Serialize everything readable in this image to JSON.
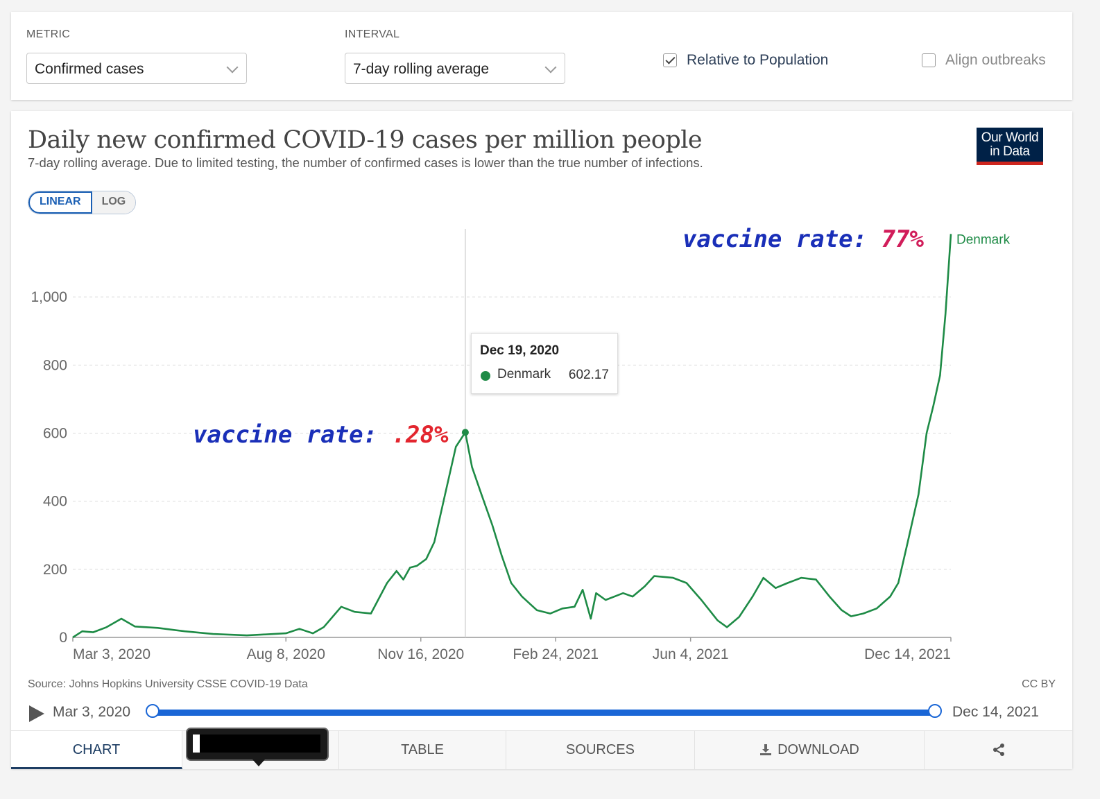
{
  "controls": {
    "metric_label": "METRIC",
    "metric_value": "Confirmed cases",
    "interval_label": "INTERVAL",
    "interval_value": "7-day rolling average",
    "relative_label": "Relative to Population",
    "relative_checked": true,
    "align_label": "Align outbreaks",
    "align_checked": false
  },
  "chart": {
    "title": "Daily new confirmed COVID-19 cases per million people",
    "subtitle": "7-day rolling average. Due to limited testing, the number of confirmed cases is lower than the true number of infections.",
    "logo_line1": "Our World",
    "logo_line2": "in Data",
    "scale_linear": "LINEAR",
    "scale_log": "LOG",
    "source": "Source: Johns Hopkins University CSSE COVID-19 Data",
    "license": "CC BY"
  },
  "tooltip": {
    "date": "Dec 19, 2020",
    "country": "Denmark",
    "value": "602.17"
  },
  "annotations": {
    "early_prefix": "vaccine rate: ",
    "early_value": ".28%",
    "late_prefix": "vaccine rate: ",
    "late_value": "77%"
  },
  "timeline": {
    "start": "Mar 3, 2020",
    "end": "Dec 14, 2021"
  },
  "tabs": {
    "chart": "CHART",
    "table": "TABLE",
    "sources": "SOURCES",
    "download": "DOWNLOAD"
  },
  "chart_data": {
    "type": "line",
    "title": "Daily new confirmed COVID-19 cases per million people",
    "subtitle": "7-day rolling average. Due to limited testing, the number of confirmed cases is lower than the true number of infections.",
    "xlabel": "",
    "ylabel": "",
    "ylim": [
      0,
      1200
    ],
    "xlim": [
      "2020-03-03",
      "2021-12-14"
    ],
    "x_ticks": [
      "Mar 3, 2020",
      "Aug 8, 2020",
      "Nov 16, 2020",
      "Feb 24, 2021",
      "Jun 4, 2021",
      "Dec 14, 2021"
    ],
    "y_ticks": [
      0,
      200,
      400,
      600,
      800,
      1000
    ],
    "grid": true,
    "series_color": "#1e8b46",
    "series": [
      {
        "name": "Denmark",
        "points": [
          [
            "2020-03-03",
            0
          ],
          [
            "2020-03-10",
            18
          ],
          [
            "2020-03-18",
            15
          ],
          [
            "2020-03-28",
            30
          ],
          [
            "2020-04-08",
            55
          ],
          [
            "2020-04-18",
            32
          ],
          [
            "2020-05-05",
            28
          ],
          [
            "2020-05-25",
            18
          ],
          [
            "2020-06-15",
            10
          ],
          [
            "2020-07-10",
            6
          ],
          [
            "2020-07-20",
            8
          ],
          [
            "2020-08-08",
            12
          ],
          [
            "2020-08-18",
            25
          ],
          [
            "2020-08-28",
            12
          ],
          [
            "2020-09-05",
            30
          ],
          [
            "2020-09-18",
            90
          ],
          [
            "2020-09-28",
            75
          ],
          [
            "2020-10-10",
            70
          ],
          [
            "2020-10-22",
            160
          ],
          [
            "2020-10-29",
            195
          ],
          [
            "2020-11-03",
            170
          ],
          [
            "2020-11-08",
            205
          ],
          [
            "2020-11-13",
            210
          ],
          [
            "2020-11-20",
            230
          ],
          [
            "2020-11-26",
            280
          ],
          [
            "2020-12-04",
            420
          ],
          [
            "2020-12-12",
            560
          ],
          [
            "2020-12-19",
            602.17
          ],
          [
            "2020-12-24",
            500
          ],
          [
            "2020-12-31",
            420
          ],
          [
            "2021-01-08",
            330
          ],
          [
            "2021-01-15",
            240
          ],
          [
            "2021-01-22",
            160
          ],
          [
            "2021-01-30",
            120
          ],
          [
            "2021-02-10",
            80
          ],
          [
            "2021-02-20",
            70
          ],
          [
            "2021-03-01",
            85
          ],
          [
            "2021-03-10",
            90
          ],
          [
            "2021-03-16",
            140
          ],
          [
            "2021-03-22",
            55
          ],
          [
            "2021-03-26",
            130
          ],
          [
            "2021-04-02",
            110
          ],
          [
            "2021-04-15",
            130
          ],
          [
            "2021-04-22",
            120
          ],
          [
            "2021-05-01",
            150
          ],
          [
            "2021-05-08",
            180
          ],
          [
            "2021-05-22",
            175
          ],
          [
            "2021-06-01",
            160
          ],
          [
            "2021-06-12",
            110
          ],
          [
            "2021-06-24",
            50
          ],
          [
            "2021-07-01",
            30
          ],
          [
            "2021-07-10",
            60
          ],
          [
            "2021-07-20",
            120
          ],
          [
            "2021-07-28",
            175
          ],
          [
            "2021-08-06",
            145
          ],
          [
            "2021-08-15",
            160
          ],
          [
            "2021-08-25",
            175
          ],
          [
            "2021-09-05",
            170
          ],
          [
            "2021-09-15",
            120
          ],
          [
            "2021-09-24",
            80
          ],
          [
            "2021-10-01",
            62
          ],
          [
            "2021-10-10",
            70
          ],
          [
            "2021-10-20",
            85
          ],
          [
            "2021-10-30",
            120
          ],
          [
            "2021-11-05",
            160
          ],
          [
            "2021-11-12",
            280
          ],
          [
            "2021-11-20",
            420
          ],
          [
            "2021-11-26",
            600
          ],
          [
            "2021-12-01",
            680
          ],
          [
            "2021-12-06",
            770
          ],
          [
            "2021-12-10",
            950
          ],
          [
            "2021-12-14",
            1185
          ]
        ]
      }
    ]
  }
}
